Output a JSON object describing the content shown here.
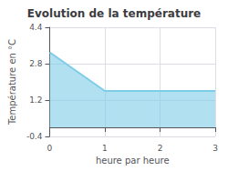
{
  "chart_data": {
    "type": "area",
    "title": "Evolution de la température",
    "xlabel": "heure par heure",
    "ylabel": "Température en °C",
    "x": [
      0,
      1,
      3
    ],
    "values": [
      3.3,
      1.6,
      1.6
    ],
    "color": "#7dcce8",
    "xlim": [
      0,
      3
    ],
    "ylim": [
      -0.4,
      4.4
    ],
    "xticks": [
      0,
      1,
      2,
      3
    ],
    "yticks": [
      -0.4,
      1.2,
      2.8,
      4.4
    ],
    "grid": true
  }
}
